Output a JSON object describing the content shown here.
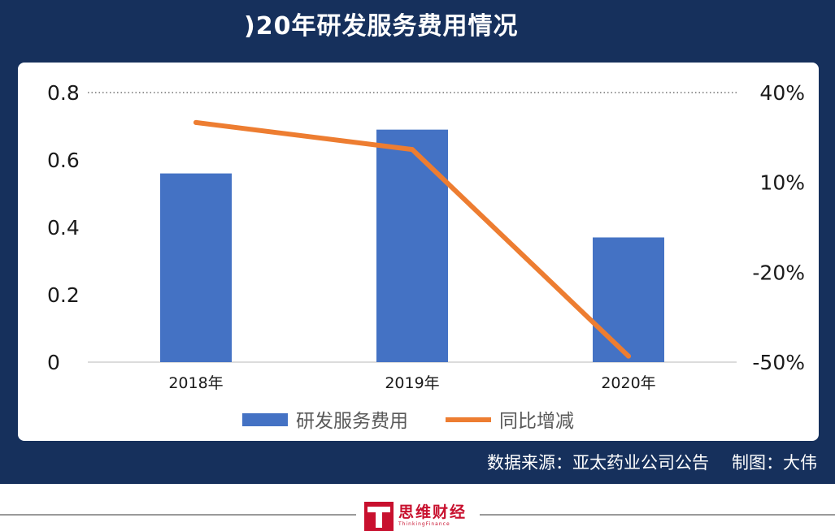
{
  "title": ")20年研发服务费用情况",
  "source_text": "数据来源：亚太药业公司公告",
  "credit_text": "制图：大伟",
  "logo": {
    "name": "思维财经",
    "subtitle": "ThinkingFinance"
  },
  "colors": {
    "frame": "#16305c",
    "bar": "#4472c4",
    "line": "#ed7d31"
  },
  "chart_data": {
    "type": "bar",
    "categories": [
      "2018年",
      "2019年",
      "2020年"
    ],
    "series": [
      {
        "name": "研发服务费用",
        "type": "bar",
        "axis": "left",
        "values": [
          0.56,
          0.69,
          0.37
        ]
      },
      {
        "name": "同比增减",
        "type": "line",
        "axis": "right",
        "values": [
          30,
          21,
          -48
        ]
      }
    ],
    "ylim_left": [
      0,
      0.8
    ],
    "yticks_left": [
      "0",
      "0.2",
      "0.4",
      "0.6",
      "0.8"
    ],
    "ylim_right": [
      -50,
      40
    ],
    "yticks_right": [
      "-50%",
      "-20%",
      "10%",
      "40%"
    ],
    "grid": "top dotted line only",
    "legend": "bottom-center"
  }
}
